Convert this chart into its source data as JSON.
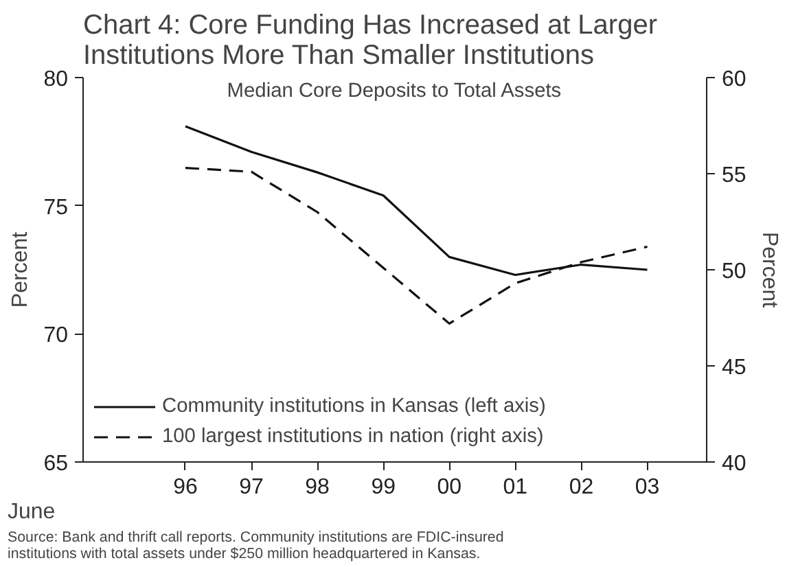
{
  "chart_data": {
    "type": "line",
    "title": "Chart 4: Core Funding Has Increased at Larger\nInstitutions More Than Smaller Institutions",
    "subtitle": "Median Core Deposits to Total Assets",
    "xlabel": "June",
    "ylabel": "Percent",
    "y2label": "Percent",
    "categories": [
      "96",
      "97",
      "98",
      "99",
      "00",
      "01",
      "02",
      "03"
    ],
    "series": [
      {
        "name": "Community institutions in Kansas (left axis)",
        "color": "#111111",
        "line_style": "solid",
        "values": [
          78.1,
          77.1,
          76.3,
          75.4,
          73.0,
          72.3,
          72.7,
          72.5
        ]
      },
      {
        "name": "100 largest institutions in nation (right axis)",
        "color": "#111111",
        "line_style": "dashed",
        "axis": "y2",
        "values": [
          55.3,
          55.1,
          53.0,
          50.1,
          47.2,
          49.3,
          50.4,
          51.2
        ]
      }
    ],
    "ylim": [
      65,
      80
    ],
    "yticks": [
      65,
      70,
      75,
      80
    ],
    "y2lim": [
      40,
      60
    ],
    "y2ticks": [
      40,
      45,
      50,
      55,
      60
    ],
    "legend": "bottom left",
    "grid": false,
    "marker": "none",
    "annotations": [
      "Source: Bank and thrift call reports. Community institutions are FDIC-insured\ninstitutions with total assets under $250 million headquartered in Kansas."
    ]
  }
}
